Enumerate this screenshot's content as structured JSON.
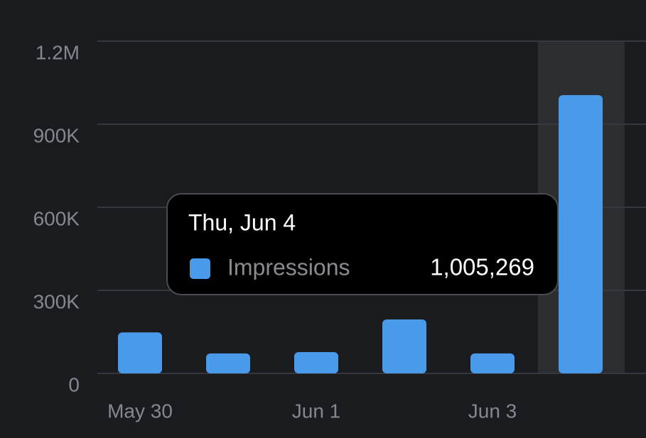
{
  "chart_data": {
    "type": "bar",
    "categories": [
      "May 30",
      null,
      "Jun 1",
      null,
      "Jun 3",
      null
    ],
    "series": [
      {
        "name": "Impressions",
        "color": "#4a9aea",
        "values": [
          148000,
          72000,
          77000,
          195000,
          72000,
          1005269
        ]
      }
    ],
    "ylim": [
      0,
      1200000
    ],
    "yticks": [
      0,
      {
        "value": 300000,
        "label": "300K"
      },
      {
        "value": 600000,
        "label": "600K"
      },
      {
        "value": 900000,
        "label": "900K"
      },
      {
        "value": 1200000,
        "label": "1.2M"
      }
    ],
    "grid": true,
    "tooltip": {
      "title": "Thu, Jun 4",
      "label": "1,005,269"
    }
  }
}
